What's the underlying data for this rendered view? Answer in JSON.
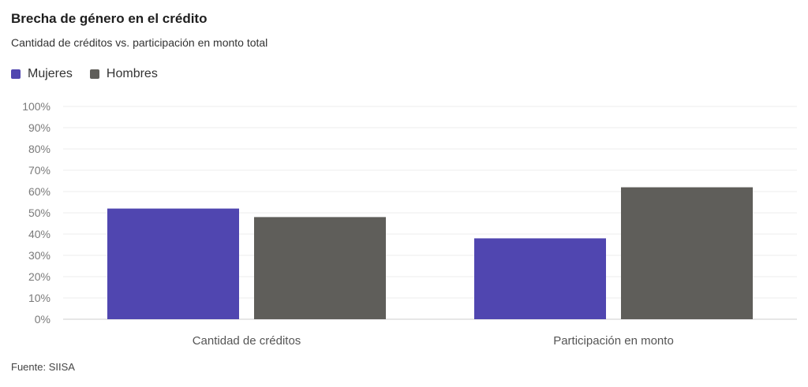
{
  "chart_data": {
    "type": "bar",
    "title": "Brecha de género en el crédito",
    "subtitle": "Cantidad de créditos vs. participación en monto total",
    "categories": [
      "Cantidad de créditos",
      "Participación en monto"
    ],
    "series": [
      {
        "name": "Mujeres",
        "values": [
          52,
          38
        ],
        "color": "#5046b0"
      },
      {
        "name": "Hombres",
        "values": [
          48,
          62
        ],
        "color": "#5f5e5a"
      }
    ],
    "y_ticks": [
      "0%",
      "10%",
      "20%",
      "30%",
      "40%",
      "50%",
      "60%",
      "70%",
      "80%",
      "90%",
      "100%"
    ],
    "ylim": [
      0,
      100
    ],
    "y_unit": "%",
    "grid": true,
    "legend_position": "top-left",
    "xlabel": "",
    "ylabel": ""
  },
  "source": "Fuente: SIISA"
}
